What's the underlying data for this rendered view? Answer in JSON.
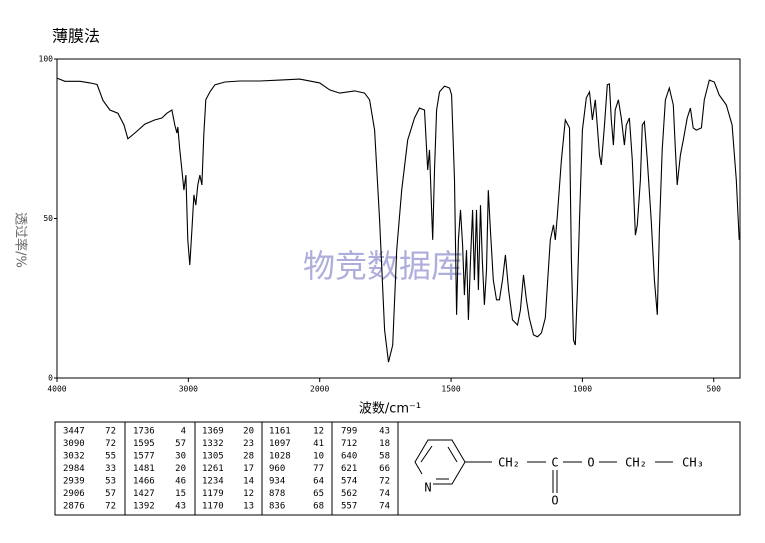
{
  "chart_data": {
    "type": "line",
    "title": "薄膜法",
    "x_label": "波数/cm⁻¹",
    "y_label": "透过率/%",
    "watermark": "物竞数据库",
    "color": "#000000",
    "xlim": [
      4000,
      400
    ],
    "x_break": 2000,
    "xticks": [
      4000,
      3000,
      2000,
      1500,
      1000,
      500
    ],
    "ylim": [
      0,
      100
    ],
    "yticks": [
      0,
      50,
      100
    ],
    "x": [
      4000,
      3940,
      3825,
      3749,
      3695,
      3650,
      3597,
      3536,
      3490,
      3460,
      3407,
      3331,
      3255,
      3201,
      3163,
      3125,
      3103,
      3087,
      3080,
      3065,
      3049,
      3034,
      3019,
      3004,
      2989,
      2973,
      2958,
      2943,
      2928,
      2912,
      2897,
      2882,
      2867,
      2836,
      2798,
      2722,
      2608,
      2456,
      2304,
      2152,
      2000,
      1962,
      1924,
      1867,
      1829,
      1810,
      1791,
      1772,
      1753,
      1738,
      1722,
      1707,
      1688,
      1665,
      1639,
      1620,
      1601,
      1589,
      1582,
      1574,
      1570,
      1563,
      1555,
      1544,
      1525,
      1506,
      1498,
      1487,
      1479,
      1472,
      1464,
      1456,
      1449,
      1441,
      1434,
      1426,
      1418,
      1411,
      1403,
      1396,
      1388,
      1381,
      1373,
      1365,
      1358,
      1350,
      1339,
      1327,
      1316,
      1304,
      1293,
      1281,
      1266,
      1247,
      1236,
      1224,
      1213,
      1202,
      1186,
      1171,
      1156,
      1141,
      1133,
      1122,
      1110,
      1103,
      1095,
      1080,
      1065,
      1049,
      1042,
      1034,
      1027,
      1019,
      1011,
      1000,
      985,
      973,
      962,
      951,
      935,
      928,
      916,
      905,
      897,
      890,
      882,
      875,
      863,
      852,
      840,
      833,
      821,
      810,
      798,
      791,
      779,
      772,
      764,
      753,
      738,
      726,
      715,
      707,
      696,
      684,
      669,
      654,
      646,
      639,
      627,
      616,
      601,
      589,
      578,
      566,
      547,
      536,
      517,
      498,
      479,
      452,
      430,
      414,
      403
    ],
    "values": [
      94,
      93,
      93,
      92.5,
      92,
      87,
      84,
      83,
      79.3,
      75,
      76.8,
      79.6,
      80.9,
      81.5,
      83,
      84,
      79.3,
      76.8,
      78.7,
      71.5,
      65.2,
      58.9,
      63.6,
      43.3,
      35.4,
      46.4,
      57.4,
      54.2,
      60.5,
      63.6,
      60.5,
      76.2,
      87.2,
      89.7,
      91.9,
      92.8,
      93.1,
      93.1,
      93.4,
      93.7,
      92.5,
      90.3,
      89.3,
      90,
      89.3,
      87.2,
      77.7,
      49.5,
      15,
      5,
      10.3,
      40.1,
      58.9,
      74.6,
      81.5,
      84.6,
      84,
      65.2,
      71.5,
      52.7,
      43.3,
      65.2,
      84,
      89.7,
      91.5,
      90.9,
      88.7,
      62.1,
      19.8,
      43.3,
      52.7,
      41.7,
      26,
      40.1,
      18.2,
      37,
      52.7,
      30.7,
      52.7,
      27.6,
      54.2,
      37,
      22.9,
      33.9,
      58.9,
      46.4,
      30.7,
      24.5,
      24.5,
      30.7,
      38.6,
      27.6,
      18.2,
      16.6,
      21.3,
      32.3,
      24.5,
      18.8,
      13.5,
      12.9,
      14.1,
      18.8,
      29.2,
      43.3,
      48,
      43.3,
      51.1,
      68.3,
      80.9,
      78.4,
      37,
      11.9,
      10.3,
      27.6,
      49.5,
      77.7,
      87.8,
      89.7,
      80.9,
      87.2,
      69.9,
      66.8,
      79.3,
      91.9,
      92.2,
      80.9,
      73,
      84,
      87.2,
      81.5,
      73,
      79.3,
      81.5,
      68.3,
      44.8,
      48,
      62.1,
      79.3,
      80.3,
      68.3,
      49.5,
      30.7,
      19.8,
      46.4,
      71.5,
      87.2,
      90.9,
      85.6,
      71.5,
      60.5,
      69.9,
      74.6,
      81.5,
      84.6,
      78.4,
      77.7,
      78.4,
      87.2,
      93.4,
      92.8,
      88.7,
      85.6,
      79.3,
      62.1,
      43.3
    ]
  },
  "peak_table": {
    "columns": [
      [
        [
          3447,
          72
        ],
        [
          3090,
          72
        ],
        [
          3032,
          55
        ],
        [
          2984,
          33
        ],
        [
          2939,
          53
        ],
        [
          2906,
          57
        ],
        [
          2876,
          72
        ]
      ],
      [
        [
          1736,
          4
        ],
        [
          1595,
          57
        ],
        [
          1577,
          30
        ],
        [
          1481,
          20
        ],
        [
          1466,
          46
        ],
        [
          1427,
          15
        ],
        [
          1392,
          43
        ]
      ],
      [
        [
          1369,
          20
        ],
        [
          1332,
          23
        ],
        [
          1305,
          28
        ],
        [
          1261,
          17
        ],
        [
          1234,
          14
        ],
        [
          1179,
          12
        ],
        [
          1170,
          13
        ]
      ],
      [
        [
          1161,
          12
        ],
        [
          1097,
          41
        ],
        [
          1028,
          10
        ],
        [
          960,
          77
        ],
        [
          934,
          64
        ],
        [
          878,
          65
        ],
        [
          836,
          68
        ]
      ],
      [
        [
          799,
          43
        ],
        [
          712,
          18
        ],
        [
          640,
          58
        ],
        [
          621,
          66
        ],
        [
          574,
          72
        ],
        [
          562,
          74
        ],
        [
          557,
          74
        ]
      ]
    ]
  },
  "structure": {
    "ring_atom": "N",
    "chain": [
      "CH₂",
      "C",
      "O",
      "CH₂",
      "CH₃"
    ],
    "carbonyl_oxygen": "O"
  }
}
